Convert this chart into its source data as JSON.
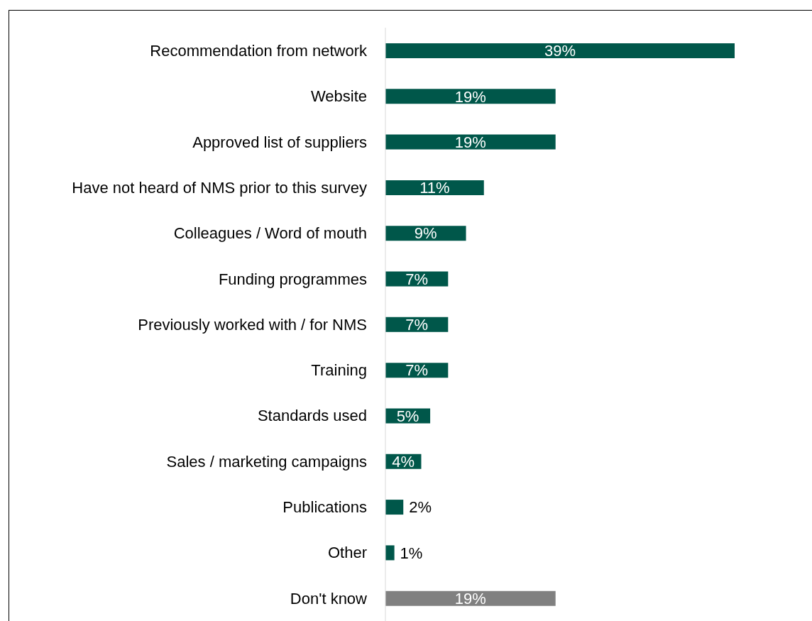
{
  "chart_data": {
    "type": "bar",
    "orientation": "horizontal",
    "categories": [
      "Recommendation from network",
      "Website",
      "Approved list of suppliers",
      "Have not heard of NMS prior to this survey",
      "Colleagues / Word of mouth",
      "Funding programmes",
      "Previously worked with / for NMS",
      "Training",
      "Standards used",
      "Sales / marketing campaigns",
      "Publications",
      "Other",
      "Don't know"
    ],
    "values": [
      39,
      19,
      19,
      11,
      9,
      7,
      7,
      7,
      5,
      4,
      2,
      1,
      19
    ],
    "colors": [
      "#00574a",
      "#00574a",
      "#00574a",
      "#00574a",
      "#00574a",
      "#00574a",
      "#00574a",
      "#00574a",
      "#00574a",
      "#00574a",
      "#00574a",
      "#00574a",
      "#808080"
    ],
    "value_labels": [
      "39%",
      "19%",
      "19%",
      "11%",
      "9%",
      "7%",
      "7%",
      "7%",
      "5%",
      "4%",
      "2%",
      "1%",
      "19%"
    ]
  }
}
